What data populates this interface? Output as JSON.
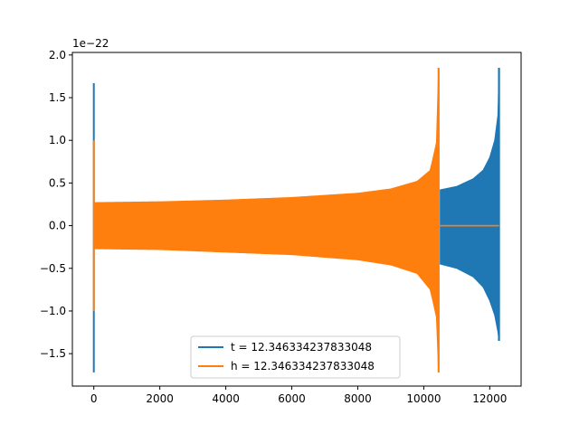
{
  "chart_data": {
    "type": "line",
    "offset_text": "1e−22",
    "xlim": [
      -650,
      12950
    ],
    "ylim": [
      -1.88,
      2.03
    ],
    "xticks": [
      0,
      2000,
      4000,
      6000,
      8000,
      10000,
      12000
    ],
    "xtick_labels": [
      "0",
      "2000",
      "4000",
      "6000",
      "8000",
      "10000",
      "12000"
    ],
    "yticks": [
      -1.5,
      -1.0,
      -0.5,
      0.0,
      0.5,
      1.0,
      1.5,
      2.0
    ],
    "ytick_labels": [
      "−1.5",
      "−1.0",
      "−0.5",
      "0.0",
      "0.5",
      "1.0",
      "1.5",
      "2.0"
    ],
    "legend_position": "lower-center",
    "series": [
      {
        "name": "t = 12.346334237833048",
        "color": "#1f77b4",
        "burst_x": 0,
        "burst_range": [
          -1.72,
          1.67
        ],
        "envelope": [
          {
            "x": 10500,
            "y": 0.42
          },
          {
            "x": 11000,
            "y": 0.46
          },
          {
            "x": 11500,
            "y": 0.55
          },
          {
            "x": 11800,
            "y": 0.65
          },
          {
            "x": 12000,
            "y": 0.8
          },
          {
            "x": 12150,
            "y": 1.0
          },
          {
            "x": 12250,
            "y": 1.3
          },
          {
            "x": 12280,
            "y": 1.85
          }
        ],
        "envelope_neg": [
          {
            "x": 10500,
            "y": -0.45
          },
          {
            "x": 11000,
            "y": -0.5
          },
          {
            "x": 11500,
            "y": -0.6
          },
          {
            "x": 11800,
            "y": -0.72
          },
          {
            "x": 12000,
            "y": -0.88
          },
          {
            "x": 12150,
            "y": -1.05
          },
          {
            "x": 12250,
            "y": -1.25
          },
          {
            "x": 12280,
            "y": -1.35
          }
        ],
        "flat_from_x": 10500,
        "flat_to_x": 12280
      },
      {
        "name": "h = 12.346334237833048",
        "color": "#ff7f0e",
        "burst_x": 0,
        "burst_range": [
          -1.0,
          1.0
        ],
        "envelope": [
          {
            "x": 0,
            "y": 0.27
          },
          {
            "x": 2000,
            "y": 0.28
          },
          {
            "x": 4000,
            "y": 0.3
          },
          {
            "x": 6000,
            "y": 0.33
          },
          {
            "x": 8000,
            "y": 0.38
          },
          {
            "x": 9000,
            "y": 0.43
          },
          {
            "x": 9800,
            "y": 0.52
          },
          {
            "x": 10200,
            "y": 0.65
          },
          {
            "x": 10400,
            "y": 1.0
          },
          {
            "x": 10450,
            "y": 1.85
          }
        ],
        "envelope_neg": [
          {
            "x": 0,
            "y": -0.27
          },
          {
            "x": 2000,
            "y": -0.28
          },
          {
            "x": 4000,
            "y": -0.31
          },
          {
            "x": 6000,
            "y": -0.34
          },
          {
            "x": 8000,
            "y": -0.4
          },
          {
            "x": 9000,
            "y": -0.46
          },
          {
            "x": 9800,
            "y": -0.56
          },
          {
            "x": 10200,
            "y": -0.75
          },
          {
            "x": 10400,
            "y": -1.1
          },
          {
            "x": 10450,
            "y": -1.72
          }
        ],
        "flat_from_x": 10450,
        "flat_to_x": 12280
      }
    ]
  }
}
